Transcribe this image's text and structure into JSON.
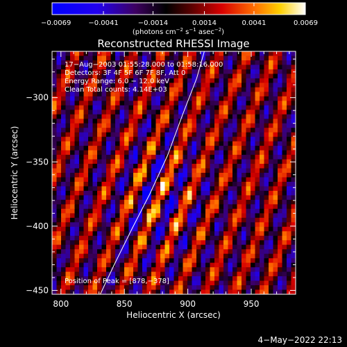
{
  "chart_data": {
    "type": "heatmap",
    "title": "Reconstructed RHESSI Image",
    "xlabel": "Heliocentric X (arcsec)",
    "ylabel": "Heliocentric Y (arcsec)",
    "xlim": [
      793,
      985
    ],
    "ylim": [
      -453,
      -264
    ],
    "x_ticks": [
      {
        "value": 800,
        "label": "800"
      },
      {
        "value": 850,
        "label": "850"
      },
      {
        "value": 900,
        "label": "900"
      },
      {
        "value": 950,
        "label": "950"
      }
    ],
    "y_ticks": [
      {
        "value": -300,
        "label": "−300"
      },
      {
        "value": -350,
        "label": "−350"
      },
      {
        "value": -400,
        "label": "−400"
      },
      {
        "value": -450,
        "label": "−450"
      }
    ],
    "colorbar": {
      "range": [
        -0.0069,
        0.0069
      ],
      "tick_values": [
        -0.0069,
        -0.0041,
        -0.0014,
        0.0014,
        0.0041,
        0.0069
      ],
      "tick_labels": [
        "−0.0069",
        "−0.0041",
        "−0.0014",
        "0.0014",
        "0.0041",
        "0.0069"
      ],
      "unit_main": "(photons cm",
      "unit_sup1": "−2",
      "unit_mid": " s",
      "unit_sup2": "−1",
      "unit_mid2": " asec",
      "unit_sup3": "−2",
      "unit_end": ")"
    },
    "annotations": {
      "time_range": "17−Aug−2003 01:55:28.000 to 01:58:16.000",
      "detectors": "Detectors: 3F 4F 5F 6F 7F 8F, Att 0",
      "energy": "Energy Range: 6.0 − 12.0 keV",
      "clean": "Clean    Total counts: 4.14E+03",
      "peak": "Position of Peak = [878,−378]"
    },
    "peak": {
      "x": 878,
      "y": -378
    },
    "limb_curve": [
      [
        831,
        -453
      ],
      [
        842,
        -430
      ],
      [
        856,
        -402
      ],
      [
        870,
        -375
      ],
      [
        884,
        -345
      ],
      [
        896,
        -313
      ],
      [
        907,
        -285
      ],
      [
        913,
        -264
      ]
    ]
  },
  "footer": {
    "timestamp": "4−May−2022 22:13"
  }
}
